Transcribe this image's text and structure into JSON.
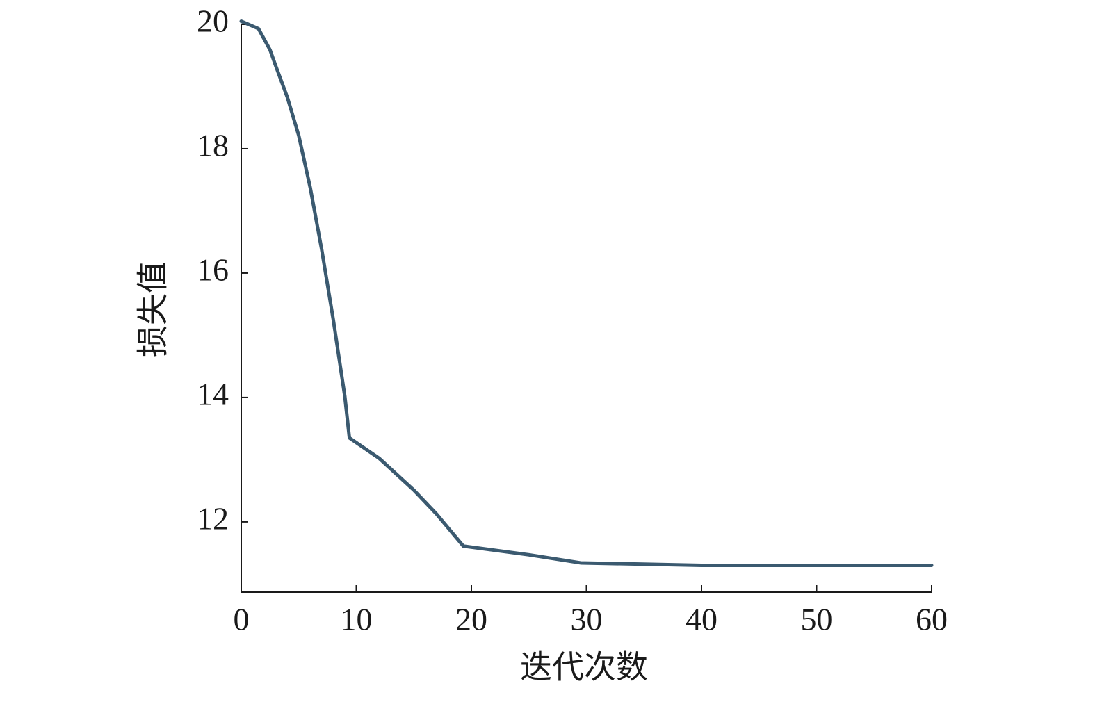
{
  "chart_data": {
    "type": "line",
    "x_label": "迭代次数",
    "y_label": "损失值",
    "x": [
      0,
      1.5,
      2.5,
      3,
      4,
      5,
      6,
      7,
      8,
      9,
      9.4,
      12,
      15,
      17,
      19.3,
      25,
      29.5,
      40,
      60
    ],
    "series": [
      {
        "name": "损失值",
        "color": "#3b5a70",
        "values": [
          20.05,
          19.93,
          19.59,
          19.33,
          18.83,
          18.21,
          17.37,
          16.37,
          15.25,
          14.02,
          13.35,
          13.02,
          12.51,
          12.12,
          11.61,
          11.47,
          11.34,
          11.3,
          11.3
        ]
      }
    ],
    "xlim": [
      0,
      60
    ],
    "xticks": [
      0,
      10,
      20,
      30,
      40,
      50,
      60
    ],
    "ylim": [
      10.87,
      20
    ],
    "yticks": [
      12,
      14,
      16,
      18,
      20
    ],
    "grid": false
  }
}
